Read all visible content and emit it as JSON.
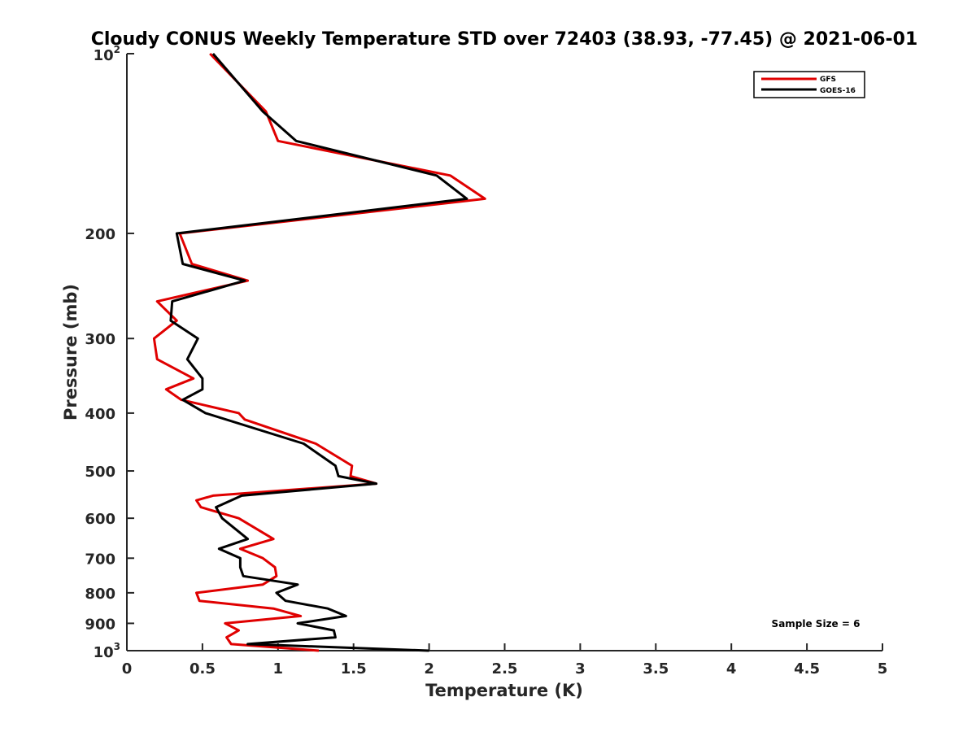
{
  "chart_data": {
    "type": "line",
    "title": "Cloudy CONUS Weekly Temperature STD over 72403 (38.93, -77.45) @ 2021-06-01",
    "xlabel": "Temperature (K)",
    "ylabel": "Pressure (mb)",
    "xlim": [
      0,
      5
    ],
    "ylim": [
      100,
      1000
    ],
    "y_scale": "log",
    "y_reversed": true,
    "grid": false,
    "legend_position": "top-right",
    "x_ticks": [
      "0",
      "0.5",
      "1",
      "1.5",
      "2",
      "2.5",
      "3",
      "3.5",
      "4",
      "4.5",
      "5"
    ],
    "y_ticks": [
      {
        "value": 100,
        "base": "10",
        "exp": "2"
      },
      {
        "value": 200,
        "label": "200"
      },
      {
        "value": 300,
        "label": "300"
      },
      {
        "value": 400,
        "label": "400"
      },
      {
        "value": 500,
        "label": "500"
      },
      {
        "value": 600,
        "label": "600"
      },
      {
        "value": 700,
        "label": "700"
      },
      {
        "value": 800,
        "label": "800"
      },
      {
        "value": 900,
        "label": "900"
      },
      {
        "value": 1000,
        "base": "10",
        "exp": "3"
      }
    ],
    "annotation": "Sample Size = 6",
    "series": [
      {
        "name": "GFS",
        "color": "#e00000",
        "points": [
          {
            "x": 1.27,
            "y": 1000
          },
          {
            "x": 0.69,
            "y": 975
          },
          {
            "x": 0.66,
            "y": 950
          },
          {
            "x": 0.74,
            "y": 925
          },
          {
            "x": 0.65,
            "y": 900
          },
          {
            "x": 1.15,
            "y": 875
          },
          {
            "x": 0.97,
            "y": 850
          },
          {
            "x": 0.48,
            "y": 825
          },
          {
            "x": 0.46,
            "y": 800
          },
          {
            "x": 0.9,
            "y": 775
          },
          {
            "x": 0.99,
            "y": 750
          },
          {
            "x": 0.98,
            "y": 725
          },
          {
            "x": 0.9,
            "y": 700
          },
          {
            "x": 0.75,
            "y": 675
          },
          {
            "x": 0.97,
            "y": 650
          },
          {
            "x": 0.74,
            "y": 600
          },
          {
            "x": 0.49,
            "y": 575
          },
          {
            "x": 0.46,
            "y": 560
          },
          {
            "x": 0.57,
            "y": 550
          },
          {
            "x": 1.65,
            "y": 525
          },
          {
            "x": 1.48,
            "y": 510
          },
          {
            "x": 1.49,
            "y": 490
          },
          {
            "x": 1.25,
            "y": 450
          },
          {
            "x": 0.78,
            "y": 410
          },
          {
            "x": 0.74,
            "y": 400
          },
          {
            "x": 0.36,
            "y": 380
          },
          {
            "x": 0.26,
            "y": 365
          },
          {
            "x": 0.44,
            "y": 350
          },
          {
            "x": 0.2,
            "y": 325
          },
          {
            "x": 0.18,
            "y": 300
          },
          {
            "x": 0.33,
            "y": 280
          },
          {
            "x": 0.2,
            "y": 260
          },
          {
            "x": 0.8,
            "y": 240
          },
          {
            "x": 0.43,
            "y": 225
          },
          {
            "x": 0.35,
            "y": 200
          },
          {
            "x": 2.37,
            "y": 175
          },
          {
            "x": 2.14,
            "y": 160
          },
          {
            "x": 1.0,
            "y": 140
          },
          {
            "x": 0.92,
            "y": 125
          },
          {
            "x": 0.55,
            "y": 100
          }
        ]
      },
      {
        "name": "GOES-16",
        "color": "#000000",
        "points": [
          {
            "x": 2.0,
            "y": 1000
          },
          {
            "x": 0.8,
            "y": 975
          },
          {
            "x": 1.38,
            "y": 950
          },
          {
            "x": 1.37,
            "y": 925
          },
          {
            "x": 1.13,
            "y": 900
          },
          {
            "x": 1.45,
            "y": 875
          },
          {
            "x": 1.33,
            "y": 850
          },
          {
            "x": 1.05,
            "y": 825
          },
          {
            "x": 0.99,
            "y": 800
          },
          {
            "x": 1.13,
            "y": 775
          },
          {
            "x": 0.77,
            "y": 750
          },
          {
            "x": 0.75,
            "y": 725
          },
          {
            "x": 0.75,
            "y": 700
          },
          {
            "x": 0.61,
            "y": 675
          },
          {
            "x": 0.8,
            "y": 650
          },
          {
            "x": 0.63,
            "y": 600
          },
          {
            "x": 0.59,
            "y": 575
          },
          {
            "x": 0.76,
            "y": 550
          },
          {
            "x": 1.65,
            "y": 525
          },
          {
            "x": 1.4,
            "y": 510
          },
          {
            "x": 1.38,
            "y": 490
          },
          {
            "x": 1.17,
            "y": 450
          },
          {
            "x": 0.52,
            "y": 400
          },
          {
            "x": 0.37,
            "y": 380
          },
          {
            "x": 0.5,
            "y": 365
          },
          {
            "x": 0.5,
            "y": 350
          },
          {
            "x": 0.4,
            "y": 325
          },
          {
            "x": 0.47,
            "y": 300
          },
          {
            "x": 0.29,
            "y": 280
          },
          {
            "x": 0.3,
            "y": 260
          },
          {
            "x": 0.78,
            "y": 240
          },
          {
            "x": 0.37,
            "y": 225
          },
          {
            "x": 0.33,
            "y": 200
          },
          {
            "x": 2.25,
            "y": 175
          },
          {
            "x": 2.05,
            "y": 160
          },
          {
            "x": 1.12,
            "y": 140
          },
          {
            "x": 0.9,
            "y": 125
          },
          {
            "x": 0.57,
            "y": 100
          }
        ]
      }
    ]
  }
}
